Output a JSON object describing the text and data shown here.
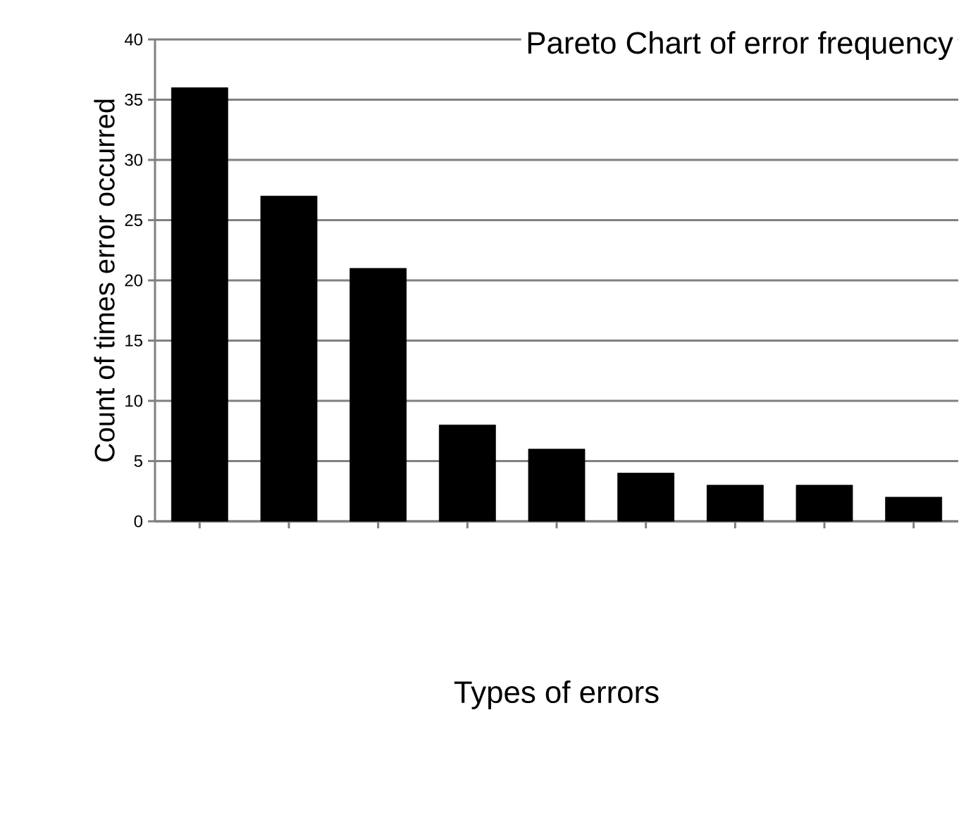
{
  "chart_data": {
    "type": "bar",
    "title": "Pareto Chart of error frequency",
    "xlabel": "Types of errors",
    "ylabel": "Count of times error occurred",
    "categories": [
      null,
      null,
      null,
      null,
      null,
      null,
      null,
      null,
      null
    ],
    "values": [
      36,
      27,
      21,
      8,
      6,
      4,
      3,
      3,
      2
    ],
    "color": "#000000",
    "ylim": [
      0,
      40
    ],
    "yticks": [
      0,
      5,
      10,
      15,
      20,
      25,
      30,
      35,
      40
    ],
    "grid": "y"
  }
}
